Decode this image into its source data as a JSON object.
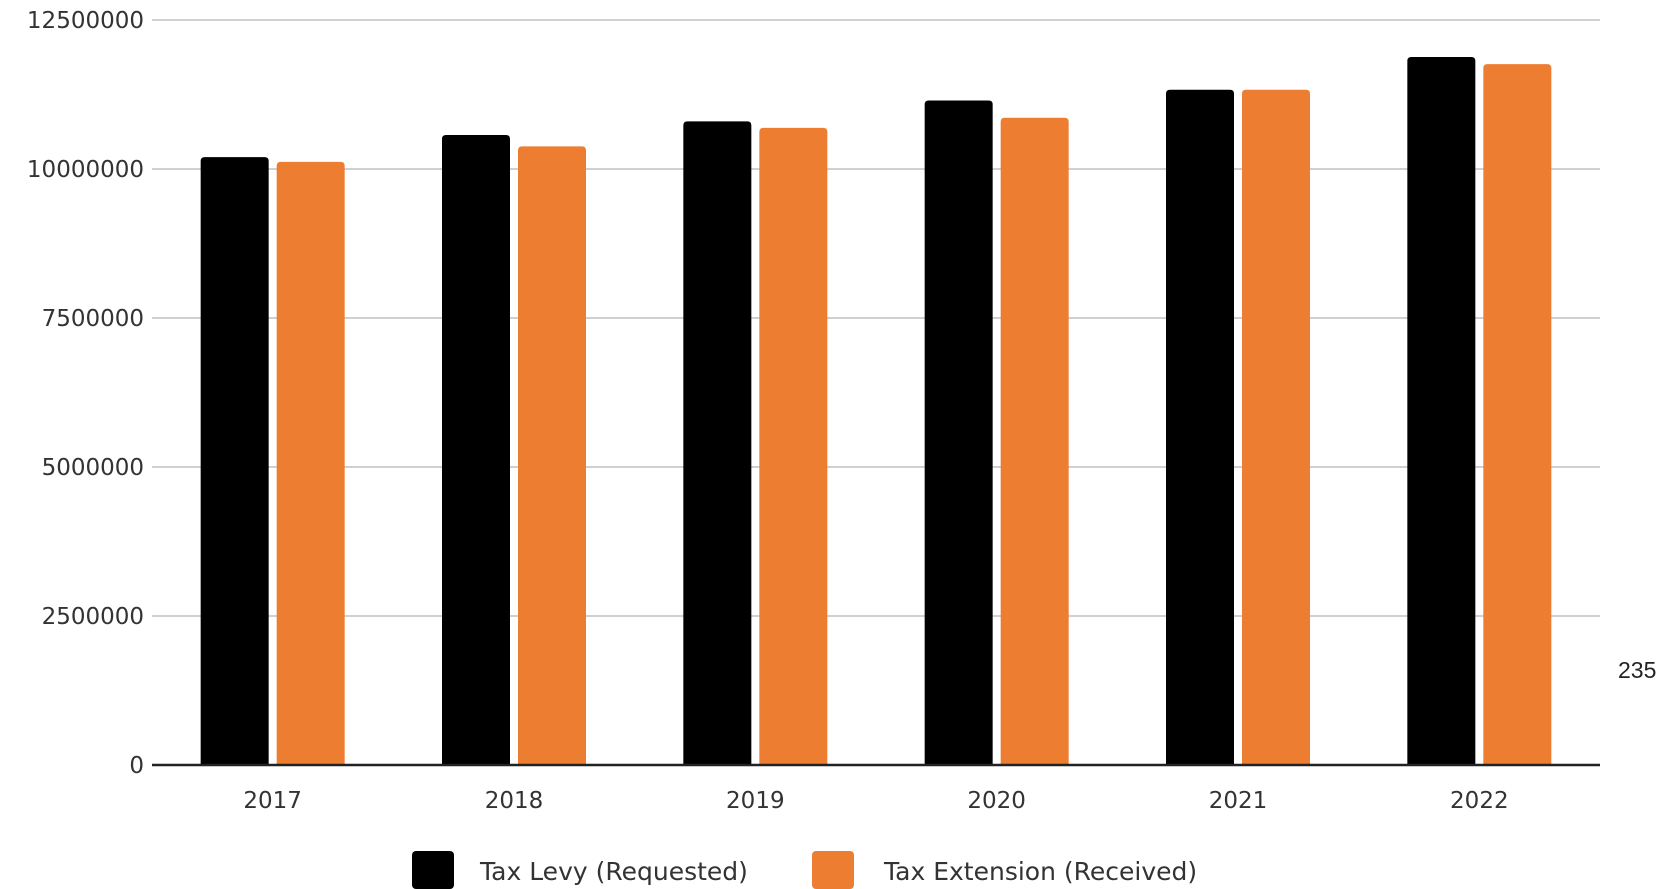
{
  "chart_data": {
    "type": "bar",
    "title": "",
    "xlabel": "",
    "ylabel": "",
    "categories": [
      "2017",
      "2018",
      "2019",
      "2020",
      "2021",
      "2022"
    ],
    "series": [
      {
        "name": "Tax Levy (Requested)",
        "color": "#000000",
        "values": [
          10200000,
          10570000,
          10800000,
          11150000,
          11330000,
          11880000
        ]
      },
      {
        "name": "Tax Extension (Received)",
        "color": "#ED7D31",
        "values": [
          10120000,
          10380000,
          10690000,
          10860000,
          11330000,
          11760000
        ]
      }
    ],
    "ylim": [
      0,
      12500000
    ],
    "yticks": [
      "0",
      "2500000",
      "5000000",
      "7500000",
      "10000000",
      "12500000"
    ],
    "grid": true,
    "legend_position": "bottom"
  },
  "page_number": "235"
}
